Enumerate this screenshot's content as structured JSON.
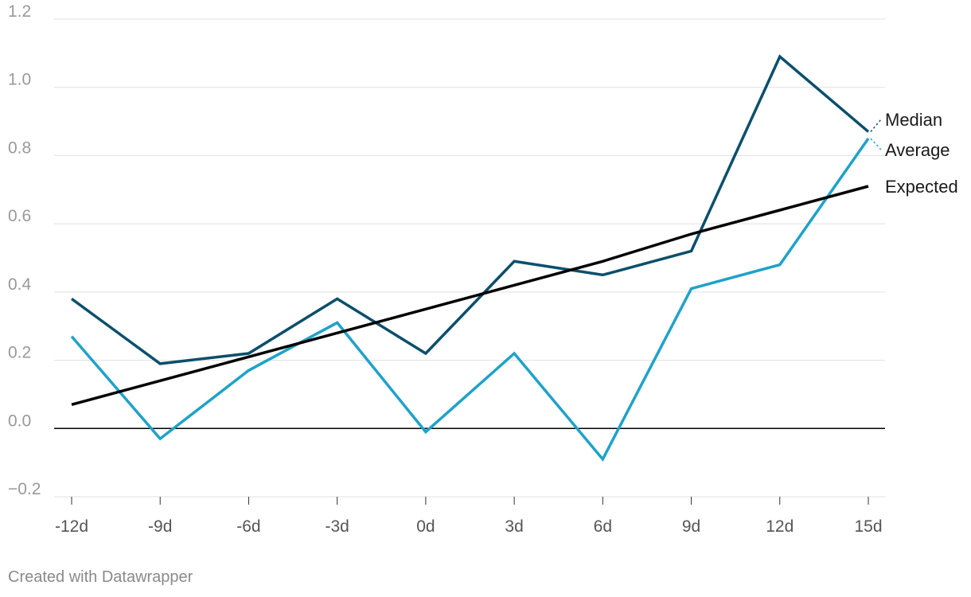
{
  "chart_data": {
    "type": "line",
    "x": [
      "-12d",
      "-9d",
      "-6d",
      "-3d",
      "0d",
      "3d",
      "6d",
      "9d",
      "12d",
      "15d"
    ],
    "ylim": [
      -0.2,
      1.2
    ],
    "yticks": [
      "−0.2",
      "0.0",
      "0.2",
      "0.4",
      "0.6",
      "0.8",
      "1.0",
      "1.2"
    ],
    "ytick_values": [
      -0.2,
      0.0,
      0.2,
      0.4,
      0.6,
      0.8,
      1.0,
      1.2
    ],
    "grid": true,
    "title": "",
    "xlabel": "",
    "ylabel": "",
    "legend": "direct labels at line ends, right",
    "series": [
      {
        "name": "Median",
        "color": "#0b4f6c",
        "values": [
          0.38,
          0.19,
          0.22,
          0.38,
          0.22,
          0.49,
          0.45,
          0.52,
          1.09,
          0.87
        ]
      },
      {
        "name": "Average",
        "color": "#1fa2c9",
        "values": [
          0.27,
          -0.03,
          0.17,
          0.31,
          -0.01,
          0.22,
          -0.09,
          0.41,
          0.48,
          0.85
        ]
      },
      {
        "name": "Expected",
        "color": "#000000",
        "values": [
          0.07,
          0.14,
          0.21,
          0.28,
          0.35,
          0.42,
          0.49,
          0.57,
          0.64,
          0.71
        ]
      }
    ]
  },
  "footer": {
    "credit": "Created with Datawrapper"
  }
}
